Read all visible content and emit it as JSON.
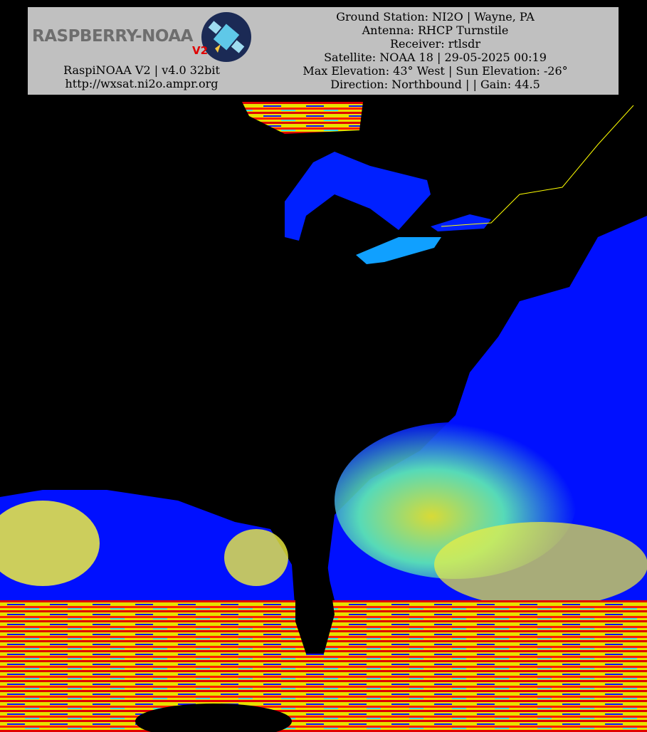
{
  "header": {
    "logo": {
      "name": "RASPBERRY-NOAA",
      "version": "V2"
    },
    "left_lines": [
      "RaspiNOAA V2 | v4.0 32bit",
      "http://wxsat.ni2o.ampr.org"
    ],
    "right_lines": [
      "Ground Station: NI2O | Wayne, PA",
      "Antenna: RHCP Turnstile",
      "Receiver: rtlsdr",
      "Satellite: NOAA 18 | 29-05-2025 00:19",
      "Max Elevation: 43° West | Sun Elevation: -26°",
      "Direction: Northbound | | Gain: 44.5"
    ]
  }
}
